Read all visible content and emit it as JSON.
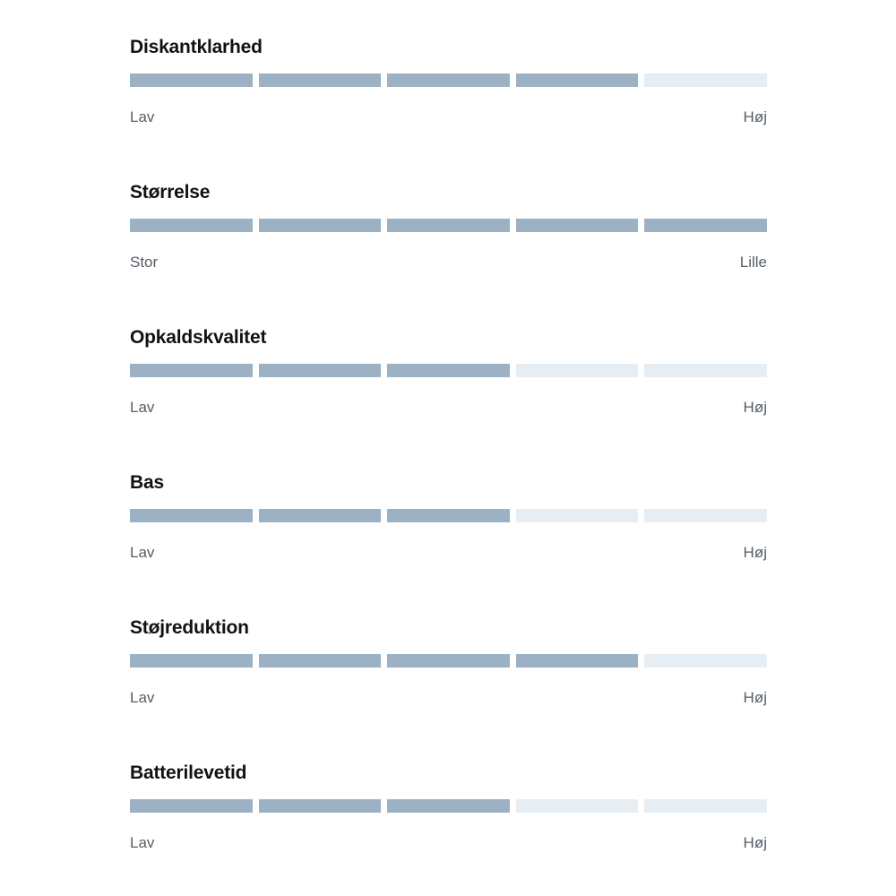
{
  "colors": {
    "background": "#ffffff",
    "segment_filled": "#9cb1c4",
    "segment_empty": "#e6edf3",
    "title_text": "#121212",
    "label_text": "#565e66"
  },
  "ratings": {
    "segments_total": 5,
    "items": [
      {
        "name": "Diskantklarhed",
        "value": 4,
        "min_label": "Lav",
        "max_label": "Høj"
      },
      {
        "name": "Størrelse",
        "value": 5,
        "min_label": "Stor",
        "max_label": "Lille"
      },
      {
        "name": "Opkaldskvalitet",
        "value": 3,
        "min_label": "Lav",
        "max_label": "Høj"
      },
      {
        "name": "Bas",
        "value": 3,
        "min_label": "Lav",
        "max_label": "Høj"
      },
      {
        "name": "Støjreduktion",
        "value": 4,
        "min_label": "Lav",
        "max_label": "Høj"
      },
      {
        "name": "Batterilevetid",
        "value": 3,
        "min_label": "Lav",
        "max_label": "Høj"
      }
    ]
  }
}
